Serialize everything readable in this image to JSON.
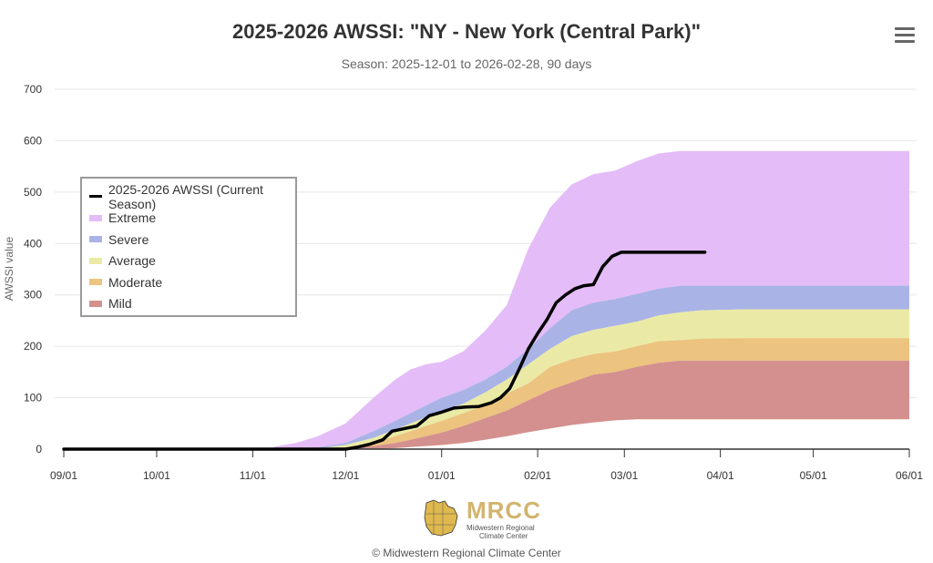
{
  "header": {
    "title": "2025-2026 AWSSI: \"NY - New York (Central Park)\"",
    "subtitle": "Season: 2025-12-01 to 2026-02-28, 90 days",
    "menu_icon": "hamburger-menu-icon"
  },
  "legend": {
    "items": [
      {
        "label": "2025-2026 AWSSI (Current Season)",
        "color": "#000000",
        "kind": "line"
      },
      {
        "label": "Extreme",
        "color": "#e4bcf7",
        "kind": "area"
      },
      {
        "label": "Severe",
        "color": "#a9b3e6",
        "kind": "area"
      },
      {
        "label": "Average",
        "color": "#eaeaa6",
        "kind": "area"
      },
      {
        "label": "Moderate",
        "color": "#ecc37f",
        "kind": "area"
      },
      {
        "label": "Mild",
        "color": "#d4908e",
        "kind": "area"
      }
    ]
  },
  "footer": {
    "logo_text": "MRCC",
    "logo_sub1": "Midwestern Regional",
    "logo_sub2": "Climate Center",
    "copyright": "© Midwestern Regional Climate Center"
  },
  "chart_data": {
    "type": "area",
    "title": "2025-2026 AWSSI: \"NY - New York (Central Park)\"",
    "subtitle": "Season: 2025-12-01 to 2026-02-28, 90 days",
    "xlabel": "",
    "ylabel": "AWSSI value",
    "x_start": "2025-09-01",
    "x_end": "2026-06-01",
    "x_ticks": [
      "09/01",
      "10/01",
      "11/01",
      "12/01",
      "01/01",
      "02/01",
      "03/01",
      "04/01",
      "05/01",
      "06/01"
    ],
    "x_tick_dates": [
      "2025-09-01",
      "2025-10-01",
      "2025-11-01",
      "2025-12-01",
      "2026-01-01",
      "2026-02-01",
      "2026-03-01",
      "2026-04-01",
      "2026-05-01",
      "2026-06-01"
    ],
    "ylim": [
      0,
      700
    ],
    "y_ticks": [
      0,
      100,
      200,
      300,
      400,
      500,
      600,
      700
    ],
    "grid": true,
    "legend_position": "left",
    "bands": {
      "dates": [
        "2025-11-08",
        "2025-11-15",
        "2025-11-22",
        "2025-12-01",
        "2025-12-10",
        "2025-12-17",
        "2025-12-22",
        "2025-12-27",
        "2026-01-01",
        "2026-01-08",
        "2026-01-15",
        "2026-01-22",
        "2026-01-29",
        "2026-02-05",
        "2026-02-12",
        "2026-02-19",
        "2026-02-26",
        "2026-03-05",
        "2026-03-12",
        "2026-03-19",
        "2026-03-26",
        "2026-04-10",
        "2026-05-01",
        "2026-06-01"
      ],
      "extreme_top": [
        5,
        12,
        25,
        50,
        100,
        135,
        155,
        165,
        170,
        190,
        230,
        280,
        390,
        470,
        515,
        535,
        542,
        560,
        575,
        580,
        580,
        580,
        580,
        580
      ],
      "severe_top": [
        0,
        0,
        3,
        12,
        35,
        55,
        70,
        85,
        100,
        115,
        135,
        160,
        195,
        235,
        270,
        285,
        292,
        302,
        312,
        318,
        318,
        318,
        318,
        318
      ],
      "average_top": [
        0,
        0,
        1,
        8,
        22,
        38,
        50,
        62,
        75,
        88,
        110,
        135,
        165,
        195,
        220,
        232,
        240,
        248,
        260,
        266,
        270,
        272,
        272,
        272
      ],
      "moderate_top": [
        0,
        0,
        0,
        4,
        12,
        25,
        35,
        45,
        55,
        70,
        85,
        108,
        128,
        160,
        175,
        185,
        190,
        200,
        210,
        212,
        215,
        216,
        216,
        216
      ],
      "mild_top": [
        0,
        0,
        0,
        2,
        6,
        12,
        18,
        25,
        32,
        45,
        60,
        75,
        95,
        115,
        130,
        145,
        150,
        160,
        168,
        172,
        172,
        172,
        172,
        172
      ],
      "mild_bottom": [
        0,
        0,
        0,
        0,
        0,
        2,
        4,
        6,
        8,
        12,
        18,
        25,
        33,
        40,
        47,
        52,
        56,
        58,
        58,
        58,
        58,
        58,
        58,
        58
      ]
    },
    "series": [
      {
        "name": "2025-2026 AWSSI (Current Season)",
        "dates": [
          "2025-09-01",
          "2025-12-01",
          "2025-12-05",
          "2025-12-09",
          "2025-12-13",
          "2025-12-16",
          "2025-12-20",
          "2025-12-24",
          "2025-12-28",
          "2026-01-01",
          "2026-01-05",
          "2026-01-09",
          "2026-01-13",
          "2026-01-17",
          "2026-01-20",
          "2026-01-23",
          "2026-01-26",
          "2026-01-29",
          "2026-02-01",
          "2026-02-04",
          "2026-02-07",
          "2026-02-10",
          "2026-02-13",
          "2026-02-16",
          "2026-02-19",
          "2026-02-22",
          "2026-02-25",
          "2026-02-28",
          "2026-03-10",
          "2026-03-27"
        ],
        "values": [
          0,
          0,
          4,
          10,
          18,
          35,
          40,
          45,
          65,
          72,
          80,
          82,
          83,
          90,
          100,
          118,
          155,
          195,
          225,
          252,
          285,
          300,
          312,
          318,
          320,
          355,
          375,
          383,
          383,
          383
        ]
      }
    ]
  }
}
